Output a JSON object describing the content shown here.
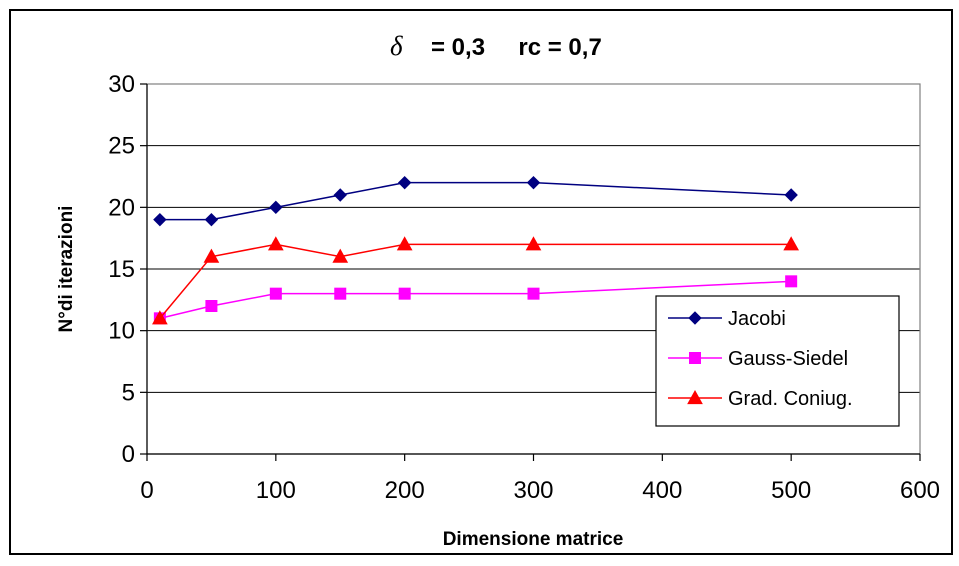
{
  "chart_data": {
    "type": "line",
    "title": {
      "symbol": "δ",
      "text": "= 0,3     rc = 0,7"
    },
    "xlabel": "Dimensione matrice",
    "ylabel": "N°di iterazioni",
    "xlim": [
      0,
      600
    ],
    "ylim": [
      0,
      30
    ],
    "xticks": [
      "0",
      "100",
      "200",
      "300",
      "400",
      "500",
      "600"
    ],
    "yticks": [
      "0",
      "5",
      "10",
      "15",
      "20",
      "25",
      "30"
    ],
    "grid": "horizontal",
    "legend_position": "right",
    "series": [
      {
        "name": "Jacobi",
        "color": "#000080",
        "marker": "diamond",
        "x": [
          10,
          50,
          100,
          150,
          200,
          300,
          500
        ],
        "y": [
          19,
          19,
          20,
          21,
          22,
          22,
          21
        ]
      },
      {
        "name": "Gauss-Siedel",
        "color": "#FF00FF",
        "marker": "square",
        "x": [
          10,
          50,
          100,
          150,
          200,
          300,
          500
        ],
        "y": [
          11,
          12,
          13,
          13,
          13,
          13,
          14
        ]
      },
      {
        "name": "Grad. Coniug.",
        "color": "#FF0000",
        "marker": "triangle",
        "x": [
          10,
          50,
          100,
          150,
          200,
          300,
          500
        ],
        "y": [
          11,
          16,
          17,
          16,
          17,
          17,
          17
        ]
      }
    ]
  }
}
